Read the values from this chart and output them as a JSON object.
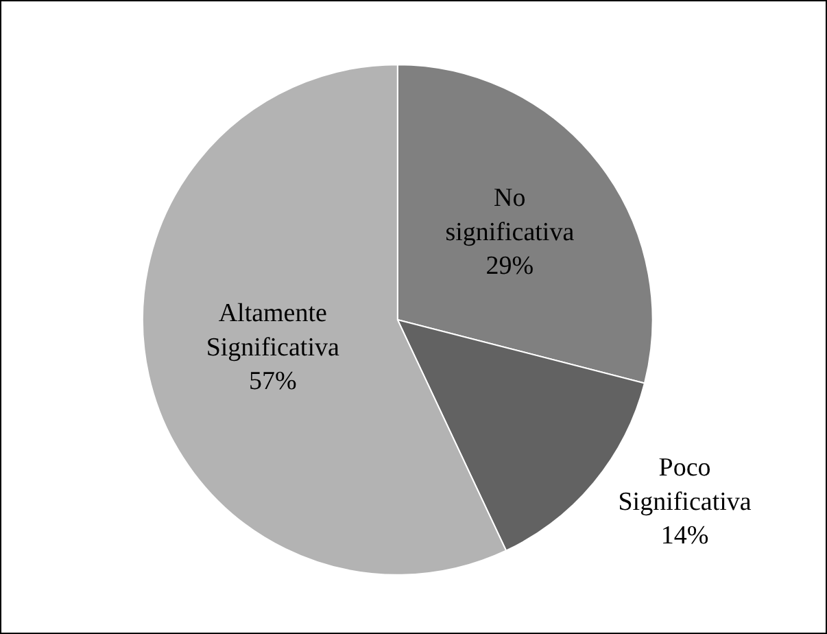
{
  "chart_data": {
    "type": "pie",
    "categories": [
      "No significativa",
      "Poco Significativa",
      "Altamente Significativa"
    ],
    "values": [
      29,
      14,
      57
    ],
    "value_labels": [
      "29%",
      "14%",
      "57%"
    ],
    "colors": [
      "#808080",
      "#626262",
      "#b3b3b3"
    ]
  }
}
